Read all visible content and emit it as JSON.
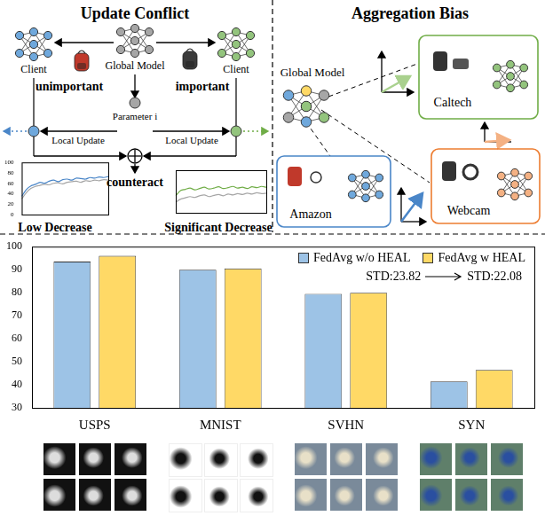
{
  "diagram": {
    "update_conflict": {
      "title": "Update Conflict",
      "left_client": "Client",
      "global_model": "Global Model",
      "right_client": "Client",
      "left_label": "unimportant",
      "right_label": "important",
      "parameter": "Parameter i",
      "local_update_left": "Local Update",
      "local_update_right": "Local Update",
      "combine": "counteract",
      "left_result": "Low Decrease",
      "right_result": "Significant Decrease"
    },
    "aggregation_bias": {
      "title": "Aggregation Bias",
      "global_model": "Global Model",
      "domains": [
        "Caltech",
        "Amazon",
        "Webcam"
      ]
    }
  },
  "chart_data": [
    {
      "type": "line",
      "ylim": [
        0,
        100
      ],
      "yticks": [
        0,
        20,
        40,
        60,
        80,
        100
      ],
      "grid": false,
      "series": [
        {
          "color": "#4a86c8",
          "values": [
            35,
            48,
            55,
            58,
            62,
            60,
            64,
            66,
            63,
            67,
            68,
            66,
            70,
            69,
            68,
            71,
            70,
            72,
            71,
            73
          ]
        },
        {
          "color": "#a6a6a6",
          "values": [
            30,
            42,
            50,
            54,
            56,
            58,
            57,
            60,
            61,
            59,
            62,
            63,
            64,
            62,
            65,
            64,
            66,
            65,
            67,
            66
          ]
        }
      ]
    },
    {
      "type": "line",
      "ylim": [
        0,
        100
      ],
      "grid": false,
      "tick_labels": false,
      "series": [
        {
          "color": "#70ad47",
          "values": [
            40,
            52,
            55,
            58,
            54,
            57,
            60,
            56,
            58,
            61,
            57,
            59,
            62,
            58,
            60,
            57,
            61,
            59,
            62,
            60
          ]
        },
        {
          "color": "#a6a6a6",
          "values": [
            25,
            32,
            35,
            38,
            36,
            40,
            42,
            38,
            41,
            43,
            40,
            44,
            42,
            45,
            43,
            46,
            44,
            47,
            45,
            46
          ]
        }
      ]
    },
    {
      "type": "bar",
      "categories": [
        "USPS",
        "MNIST",
        "SVHN",
        "SYN"
      ],
      "series": [
        {
          "name": "FedAvg w/o HEAL",
          "color": "#9dc3e6",
          "values": [
            93.5,
            90,
            79.5,
            41.5
          ]
        },
        {
          "name": "FedAvg w HEAL",
          "color": "#ffd966",
          "values": [
            96,
            90.5,
            80,
            46.5
          ]
        }
      ],
      "ylim": [
        30,
        100
      ],
      "yticks": [
        30,
        40,
        50,
        60,
        70,
        80,
        90,
        100
      ],
      "grid": false,
      "legend": "upper right",
      "annotations": [
        "STD:23.82",
        "STD:22.08"
      ]
    }
  ]
}
